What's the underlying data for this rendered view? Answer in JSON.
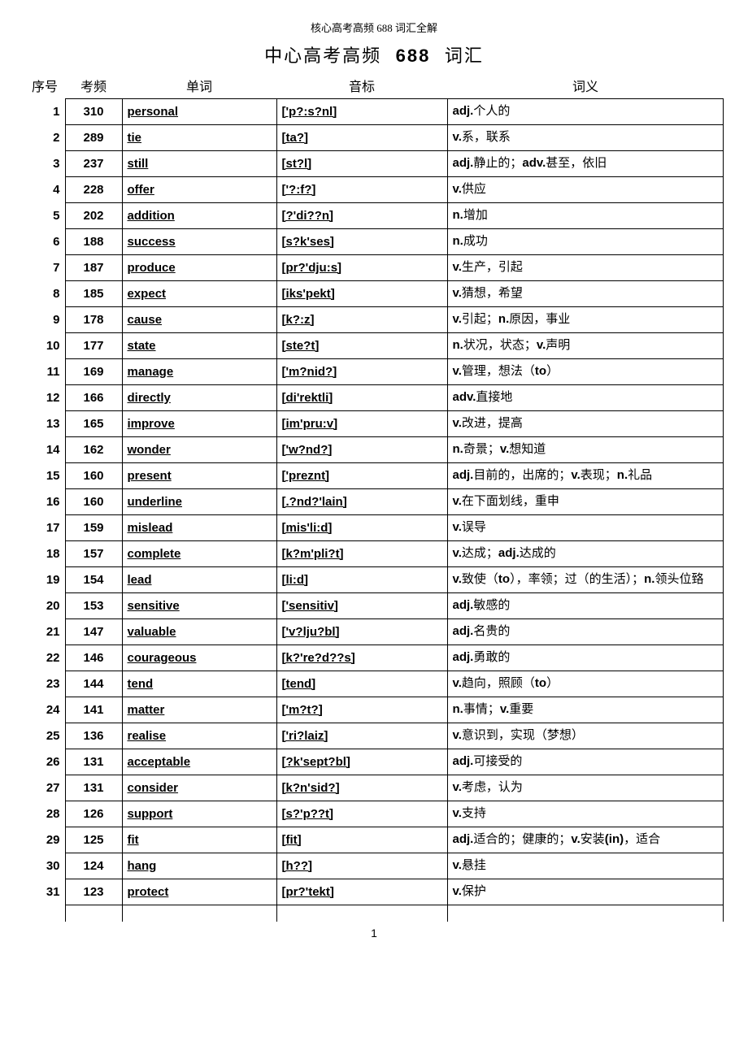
{
  "header_small": "核心高考高频 688 词汇全解",
  "title_left": "中心高考高频",
  "title_num": "688",
  "title_right": "词汇",
  "columns": {
    "idx": "序号",
    "freq": "考频",
    "word": "单词",
    "pron": "音标",
    "def": "词义"
  },
  "page_num": "1",
  "rows": [
    {
      "idx": "1",
      "freq": "310",
      "word": "personal",
      "pron": "['p?:s?nl]",
      "def": "<b>adj.</b>个人的"
    },
    {
      "idx": "2",
      "freq": "289",
      "word": "tie",
      "pron": "[ta?]",
      "def": "<b>v.</b>系，联系"
    },
    {
      "idx": "3",
      "freq": "237",
      "word": "still",
      "pron": "[st?l]",
      "def": "<b>adj.</b>静止的；<b>adv.</b>甚至，依旧"
    },
    {
      "idx": "4",
      "freq": "228",
      "word": "offer",
      "pron": "['?:f?]",
      "def": "<b>v.</b>供应"
    },
    {
      "idx": "5",
      "freq": "202",
      "word": "addition",
      "pron": "[?'di??n]",
      "def": "<b>n.</b>增加"
    },
    {
      "idx": "6",
      "freq": "188",
      "word": "success",
      "pron": "[s?k'ses]",
      "def": "<b>n.</b>成功"
    },
    {
      "idx": "7",
      "freq": "187",
      "word": "produce",
      "pron": "[pr?'dju:s]",
      "def": "<b>v.</b>生产，引起"
    },
    {
      "idx": "8",
      "freq": "185",
      "word": "expect",
      "pron": "[iks'pekt]",
      "def": "<b>v.</b>猜想，希望"
    },
    {
      "idx": "9",
      "freq": "178",
      "word": "cause",
      "pron": "[k?:z]",
      "def": "<b>v.</b>引起；<b>n.</b>原因，事业"
    },
    {
      "idx": "10",
      "freq": "177",
      "word": "state",
      "pron": "[ste?t]",
      "def": "<b>n.</b>状况，状态；<b>v.</b>声明"
    },
    {
      "idx": "11",
      "freq": "169",
      "word": "manage",
      "pron": "['m?nid?]",
      "def": "<b>v.</b>管理，想法（<b>to</b>）"
    },
    {
      "idx": "12",
      "freq": "166",
      "word": "directly",
      "pron": "[di'rektli]",
      "def": "<b>adv.</b>直接地"
    },
    {
      "idx": "13",
      "freq": "165",
      "word": "improve",
      "pron": "[im'pru:v]",
      "def": "<b>v.</b>改进，提高"
    },
    {
      "idx": "14",
      "freq": "162",
      "word": "wonder",
      "pron": "['w?nd?]",
      "def": "<b>n.</b>奇景；<b>v.</b>想知道"
    },
    {
      "idx": "15",
      "freq": "160",
      "word": "present",
      "pron": "['preznt]",
      "def": "<b>adj.</b>目前的，出席的；<b>v.</b>表现；<b>n.</b>礼品"
    },
    {
      "idx": "16",
      "freq": "160",
      "word": "underline",
      "pron": "[.?nd?'lain]",
      "def": "<b>v.</b>在下面划线，重申"
    },
    {
      "idx": "17",
      "freq": "159",
      "word": "mislead",
      "pron": "[mis'li:d]",
      "def": "<b>v.</b>误导"
    },
    {
      "idx": "18",
      "freq": "157",
      "word": "complete",
      "pron": "[k?m'pli?t]",
      "def": "<b>v.</b>达成；<b>adj.</b>达成的"
    },
    {
      "idx": "19",
      "freq": "154",
      "word": "lead",
      "pron": "[li:d]",
      "def": "<b>v.</b>致使（<b>to</b>），率领；过（的生活）；<b>n.</b>领头位臵"
    },
    {
      "idx": "20",
      "freq": "153",
      "word": "sensitive",
      "pron": "['sensitiv]",
      "def": "<b>adj.</b>敏感的"
    },
    {
      "idx": "21",
      "freq": "147",
      "word": "valuable",
      "pron": "['v?lju?bl]",
      "def": "<b>adj.</b>名贵的"
    },
    {
      "idx": "22",
      "freq": "146",
      "word": "courageous",
      "pron": "[k?'re?d??s]",
      "def": "<b>adj.</b>勇敢的"
    },
    {
      "idx": "23",
      "freq": "144",
      "word": "tend",
      "pron": "[tend]",
      "def": "<b>v.</b>趋向，照顾（<b>to</b>）"
    },
    {
      "idx": "24",
      "freq": "141",
      "word": "matter",
      "pron": "['m?t?]",
      "def": "<b>n.</b>事情；<b>v.</b>重要"
    },
    {
      "idx": "25",
      "freq": "136",
      "word": "realise",
      "pron": "['ri?laiz]",
      "def": "<b>v.</b>意识到，实现（梦想）"
    },
    {
      "idx": "26",
      "freq": "131",
      "word": "acceptable",
      "pron": "[?k'sept?bl]",
      "def": "<b>adj.</b>可接受的"
    },
    {
      "idx": "27",
      "freq": "131",
      "word": "consider",
      "pron": "[k?n'sid?]",
      "def": "<b>v.</b>考虑，认为"
    },
    {
      "idx": "28",
      "freq": "126",
      "word": "support",
      "pron": "[s?'p??t]",
      "def": "<b>v.</b>支持"
    },
    {
      "idx": "29",
      "freq": "125",
      "word": "fit",
      "pron": "[fit]",
      "def": "<b>adj.</b>适合的；健康的；<b>v.</b>安装<b>(in)</b>，适合"
    },
    {
      "idx": "30",
      "freq": "124",
      "word": "hang",
      "pron": "[h??]",
      "def": "<b>v.</b>悬挂"
    },
    {
      "idx": "31",
      "freq": "123",
      "word": "protect",
      "pron": "[pr?'tekt]",
      "def": "<b>v.</b>保护"
    }
  ]
}
